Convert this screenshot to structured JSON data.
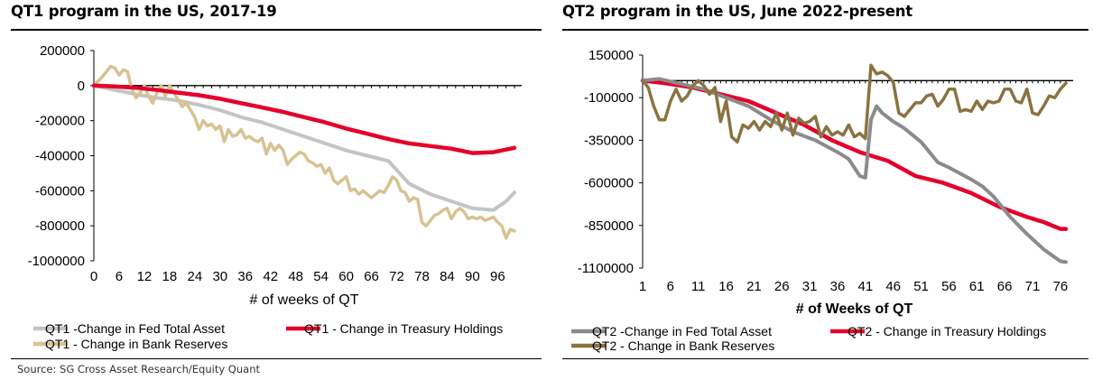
{
  "source": "Source: SG Cross Asset Research/Equity Quant",
  "chart_data": [
    {
      "type": "line",
      "title": "QT1 program in the US, 2017-19",
      "xlabel": "# of weeks of QT",
      "ylabel": "",
      "xlim": [
        0,
        100
      ],
      "ylim": [
        -1000000,
        200000
      ],
      "yticks": [
        200000,
        0,
        -200000,
        -400000,
        -600000,
        -800000,
        -1000000
      ],
      "ytick_labels": [
        "200000",
        "0",
        "-200000",
        "-400000",
        "-600000",
        "-800000",
        "-1000000"
      ],
      "xticks": [
        0,
        6,
        12,
        18,
        24,
        30,
        36,
        42,
        48,
        54,
        60,
        66,
        72,
        78,
        84,
        90,
        96
      ],
      "xtick_labels": [
        "0",
        "6",
        "12",
        "18",
        "24",
        "30",
        "36",
        "42",
        "48",
        "54",
        "60",
        "66",
        "72",
        "78",
        "84",
        "90",
        "96"
      ],
      "grid": false,
      "legend_position": "bottom",
      "series": [
        {
          "name": "QT1 -Change in Fed Total Asset",
          "color": "#c4c4c4",
          "x": [
            0,
            5,
            10,
            15,
            20,
            25,
            30,
            35,
            40,
            45,
            50,
            55,
            60,
            65,
            70,
            75,
            80,
            85,
            90,
            95,
            98,
            100
          ],
          "y": [
            0,
            -25000,
            -50000,
            -70000,
            -85000,
            -110000,
            -140000,
            -180000,
            -210000,
            -250000,
            -290000,
            -330000,
            -370000,
            -400000,
            -430000,
            -560000,
            -620000,
            -660000,
            -700000,
            -710000,
            -660000,
            -610000
          ]
        },
        {
          "name": "QT1 - Change in Treasury Holdings",
          "color": "#e4002b",
          "x": [
            0,
            5,
            10,
            15,
            20,
            25,
            30,
            35,
            40,
            45,
            50,
            55,
            60,
            65,
            70,
            75,
            80,
            85,
            90,
            95,
            100
          ],
          "y": [
            0,
            -5000,
            -12000,
            -25000,
            -40000,
            -55000,
            -75000,
            -100000,
            -125000,
            -150000,
            -180000,
            -210000,
            -245000,
            -275000,
            -305000,
            -330000,
            -345000,
            -360000,
            -385000,
            -380000,
            -355000
          ]
        },
        {
          "name": "QT1 - Change in Bank Reserves",
          "color": "#d8c291",
          "x": [
            0,
            2,
            4,
            5,
            6,
            7,
            8,
            9,
            10,
            11,
            12,
            13,
            14,
            15,
            16,
            17,
            18,
            19,
            20,
            21,
            22,
            23,
            24,
            25,
            26,
            27,
            28,
            29,
            30,
            31,
            32,
            33,
            34,
            35,
            36,
            37,
            38,
            39,
            40,
            41,
            42,
            43,
            44,
            45,
            46,
            47,
            48,
            49,
            50,
            51,
            52,
            53,
            54,
            55,
            56,
            57,
            58,
            59,
            60,
            61,
            62,
            63,
            64,
            65,
            66,
            67,
            68,
            69,
            70,
            71,
            72,
            73,
            74,
            75,
            76,
            77,
            78,
            79,
            80,
            81,
            82,
            83,
            84,
            85,
            86,
            87,
            88,
            89,
            90,
            91,
            92,
            93,
            94,
            95,
            96,
            97,
            98,
            99,
            100
          ],
          "y": [
            0,
            50000,
            110000,
            100000,
            60000,
            90000,
            80000,
            -20000,
            -70000,
            -40000,
            0,
            -60000,
            -100000,
            -40000,
            0,
            -60000,
            0,
            -40000,
            -80000,
            -120000,
            -100000,
            -140000,
            -180000,
            -250000,
            -200000,
            -230000,
            -220000,
            -250000,
            -230000,
            -320000,
            -250000,
            -290000,
            -280000,
            -250000,
            -300000,
            -290000,
            -310000,
            -320000,
            -300000,
            -390000,
            -330000,
            -370000,
            -340000,
            -370000,
            -450000,
            -420000,
            -400000,
            -380000,
            -390000,
            -430000,
            -440000,
            -460000,
            -450000,
            -500000,
            -470000,
            -540000,
            -560000,
            -540000,
            -520000,
            -600000,
            -590000,
            -620000,
            -600000,
            -620000,
            -640000,
            -620000,
            -600000,
            -610000,
            -570000,
            -520000,
            -540000,
            -600000,
            -610000,
            -660000,
            -640000,
            -650000,
            -780000,
            -800000,
            -770000,
            -740000,
            -730000,
            -710000,
            -700000,
            -760000,
            -720000,
            -700000,
            -720000,
            -760000,
            -750000,
            -760000,
            -750000,
            -770000,
            -760000,
            -750000,
            -780000,
            -800000,
            -870000,
            -820000,
            -830000
          ]
        }
      ]
    },
    {
      "type": "line",
      "title": "QT2 program in the US, June 2022-present",
      "xlabel": "# of Weeks of QT",
      "ylabel": "",
      "xlim": [
        1,
        77
      ],
      "ylim": [
        -1100000,
        150000
      ],
      "yticks": [
        150000,
        -100000,
        -350000,
        -600000,
        -850000,
        -1100000
      ],
      "ytick_labels": [
        "150000",
        "-100000",
        "-350000",
        "-600000",
        "-850000",
        "-1100000"
      ],
      "xticks": [
        1,
        6,
        11,
        16,
        21,
        26,
        31,
        36,
        41,
        46,
        51,
        56,
        61,
        66,
        71,
        76
      ],
      "xtick_labels": [
        "1",
        "6",
        "11",
        "16",
        "21",
        "26",
        "31",
        "36",
        "41",
        "46",
        "51",
        "56",
        "61",
        "66",
        "71",
        "76"
      ],
      "grid": false,
      "legend_position": "bottom",
      "series": [
        {
          "name": "QT2 -Change in Fed Total Asset",
          "color": "#8b8b8b",
          "x": [
            1,
            4,
            8,
            12,
            16,
            20,
            24,
            28,
            32,
            36,
            38,
            40,
            41,
            42,
            43,
            44,
            46,
            48,
            51,
            54,
            56,
            60,
            62,
            64,
            67,
            70,
            73,
            76,
            77
          ],
          "y": [
            0,
            10000,
            -20000,
            -50000,
            -100000,
            -150000,
            -230000,
            -300000,
            -350000,
            -420000,
            -460000,
            -560000,
            -570000,
            -230000,
            -150000,
            -190000,
            -240000,
            -280000,
            -360000,
            -480000,
            -510000,
            -580000,
            -620000,
            -680000,
            -800000,
            -900000,
            -990000,
            -1060000,
            -1065000
          ]
        },
        {
          "name": "QT2 - Change in Treasury Holdings",
          "color": "#e4002b",
          "x": [
            1,
            5,
            10,
            15,
            20,
            25,
            30,
            35,
            40,
            45,
            50,
            55,
            60,
            65,
            70,
            73,
            76,
            77
          ],
          "y": [
            0,
            -15000,
            -40000,
            -80000,
            -120000,
            -190000,
            -260000,
            -350000,
            -420000,
            -470000,
            -560000,
            -600000,
            -660000,
            -740000,
            -800000,
            -830000,
            -870000,
            -870000
          ]
        },
        {
          "name": "QT2 - Change in Bank Reserves",
          "color": "#8a7340",
          "x": [
            1,
            2,
            3,
            4,
            5,
            6,
            7,
            8,
            9,
            10,
            11,
            12,
            13,
            14,
            15,
            16,
            17,
            18,
            19,
            20,
            21,
            22,
            23,
            24,
            25,
            26,
            27,
            28,
            29,
            30,
            31,
            32,
            33,
            34,
            35,
            36,
            37,
            38,
            39,
            40,
            41,
            42,
            43,
            44,
            45,
            46,
            47,
            48,
            49,
            50,
            51,
            52,
            53,
            54,
            55,
            56,
            57,
            58,
            59,
            60,
            61,
            62,
            63,
            64,
            65,
            66,
            67,
            68,
            69,
            70,
            71,
            72,
            73,
            74,
            75,
            76,
            77
          ],
          "y": [
            0,
            -40000,
            -150000,
            -230000,
            -230000,
            -120000,
            -50000,
            -120000,
            -90000,
            -30000,
            0,
            -30000,
            -80000,
            -40000,
            -240000,
            -120000,
            -330000,
            -360000,
            -260000,
            -280000,
            -240000,
            -290000,
            -240000,
            -270000,
            -190000,
            -290000,
            -190000,
            -320000,
            -220000,
            -250000,
            -240000,
            -210000,
            -330000,
            -270000,
            -320000,
            -300000,
            -320000,
            -260000,
            -330000,
            -310000,
            -340000,
            90000,
            40000,
            50000,
            30000,
            -10000,
            -190000,
            -210000,
            -170000,
            -130000,
            -130000,
            -90000,
            -80000,
            -150000,
            -110000,
            -50000,
            -50000,
            -180000,
            -170000,
            -180000,
            -120000,
            -170000,
            -120000,
            -130000,
            -120000,
            -50000,
            -50000,
            -120000,
            -130000,
            -50000,
            -190000,
            -200000,
            -150000,
            -90000,
            -100000,
            -50000,
            -15000
          ]
        }
      ]
    }
  ]
}
